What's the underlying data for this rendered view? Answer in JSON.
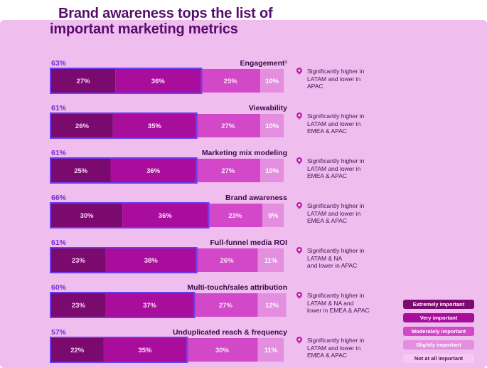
{
  "title": {
    "line1": "Brand awareness tops the list of",
    "line2": "important marketing metrics"
  },
  "colors": {
    "extremely": "#7b0a6e",
    "very": "#a80d9c",
    "moderately": "#d348c8",
    "slightly": "#e48ee0",
    "not_at_all": "#f1bfee",
    "outline": "#6a3df0",
    "total_label": "#7a2bd6",
    "panel": "#efbdee",
    "pin": "#c01cae"
  },
  "legend": [
    {
      "key": "extremely",
      "label": "Extremely important"
    },
    {
      "key": "very",
      "label": "Very important"
    },
    {
      "key": "moderately",
      "label": "Moderately important"
    },
    {
      "key": "slightly",
      "label": "Slightly important"
    },
    {
      "key": "not_at_all",
      "label": "Not at all important"
    }
  ],
  "notes": [
    {
      "line1": "Significantly higher in",
      "line2": "LATAM and lower in",
      "line3": "APAC"
    },
    {
      "line1": "Significantly higher in",
      "line2": "LATAM and lower in",
      "line3": "EMEA & APAC"
    },
    {
      "line1": "Significantly higher in",
      "line2": "LATAM and lower in",
      "line3": "EMEA & APAC"
    },
    {
      "line1": "Significantly higher in",
      "line2": "LATAM and lower in",
      "line3": "EMEA & APAC"
    },
    {
      "line1": "Significantly higher in",
      "line2": "LATAM & NA",
      "line3": "and lower in APAC"
    },
    {
      "line1": "Significantly higher in",
      "line2": "LATAM & NA and",
      "line3": "lower in EMEA & APAC"
    },
    {
      "line1": "Significantly higher in",
      "line2": "LATAM and lower in",
      "line3": "EMEA & APAC"
    }
  ],
  "chart_data": {
    "type": "bar",
    "orientation": "horizontal",
    "stacked": true,
    "categories": [
      "Engagement¹",
      "Viewability",
      "Marketing mix modeling",
      "Brand awareness",
      "Full-funnel media ROI",
      "Multi-touch/sales attribution",
      "Unduplicated reach & frequency"
    ],
    "totals_top2": [
      "63%",
      "61%",
      "61%",
      "66%",
      "61%",
      "60%",
      "57%"
    ],
    "series": [
      {
        "name": "Extremely important",
        "key": "extremely",
        "values": [
          27,
          26,
          25,
          30,
          23,
          23,
          22
        ],
        "labels": [
          "27%",
          "26%",
          "25%",
          "30%",
          "23%",
          "23%",
          "22%"
        ]
      },
      {
        "name": "Very important",
        "key": "very",
        "values": [
          36,
          35,
          36,
          36,
          38,
          37,
          35
        ],
        "labels": [
          "36%",
          "35%",
          "36%",
          "36%",
          "38%",
          "37%",
          "35%"
        ]
      },
      {
        "name": "Moderately important",
        "key": "moderately",
        "values": [
          25,
          27,
          27,
          23,
          26,
          27,
          30
        ],
        "labels": [
          "25%",
          "27%",
          "27%",
          "23%",
          "26%",
          "27%",
          "30%"
        ]
      },
      {
        "name": "Slightly important",
        "key": "slightly",
        "values": [
          10,
          10,
          10,
          9,
          11,
          12,
          11
        ],
        "labels": [
          "10%",
          "10%",
          "10%",
          "9%",
          "11%",
          "12%",
          "11%"
        ]
      },
      {
        "name": "Not at all important",
        "key": "not_at_all",
        "values": [
          2,
          2,
          2,
          2,
          2,
          1,
          2
        ],
        "labels": [
          "",
          "",
          "",
          "",
          "",
          "",
          ""
        ]
      }
    ],
    "xlim": [
      0,
      100
    ],
    "legend_position": "bottom-right"
  }
}
